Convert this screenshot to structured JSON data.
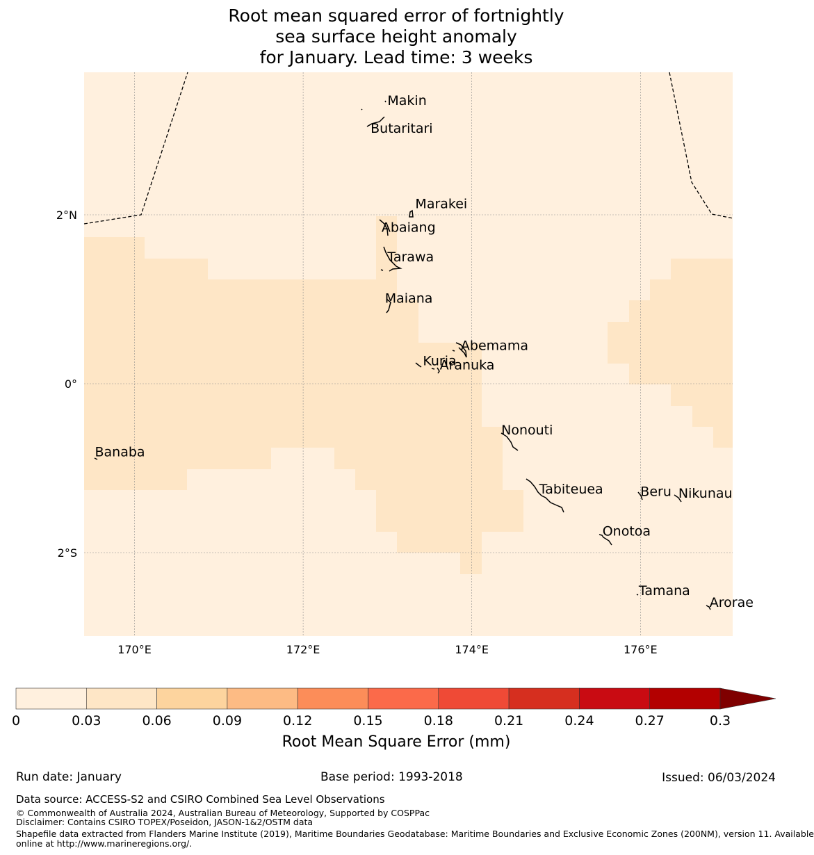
{
  "title": {
    "line1": "Root mean squared error of fortnightly",
    "line2": "sea surface height anomaly",
    "line3": "for January. Lead time: 3 weeks"
  },
  "map": {
    "lon_range": [
      169.4,
      177.1
    ],
    "lat_range": [
      -3.0,
      3.7
    ],
    "lon_ticks": [
      {
        "value": 170,
        "label": "170°E"
      },
      {
        "value": 172,
        "label": "172°E"
      },
      {
        "value": 174,
        "label": "174°E"
      },
      {
        "value": 176,
        "label": "176°E"
      }
    ],
    "lat_ticks": [
      {
        "value": 2,
        "label": "2°N"
      },
      {
        "value": 0,
        "label": "0°"
      },
      {
        "value": -2,
        "label": "2°S"
      }
    ],
    "places": [
      {
        "name": "Makin",
        "lon": 173.0,
        "lat": 3.3
      },
      {
        "name": "Butaritari",
        "lon": 172.8,
        "lat": 2.97
      },
      {
        "name": "Marakei",
        "lon": 173.33,
        "lat": 2.08
      },
      {
        "name": "Abaiang",
        "lon": 172.93,
        "lat": 1.8
      },
      {
        "name": "Tarawa",
        "lon": 173.0,
        "lat": 1.45
      },
      {
        "name": "Maiana",
        "lon": 172.97,
        "lat": 0.96
      },
      {
        "name": "Abemama",
        "lon": 173.87,
        "lat": 0.4
      },
      {
        "name": "Kuria",
        "lon": 173.42,
        "lat": 0.22
      },
      {
        "name": "Aranuka",
        "lon": 173.62,
        "lat": 0.17
      },
      {
        "name": "Nonouti",
        "lon": 174.35,
        "lat": -0.6
      },
      {
        "name": "Banaba",
        "lon": 169.53,
        "lat": -0.86
      },
      {
        "name": "Tabiteuea",
        "lon": 174.8,
        "lat": -1.3
      },
      {
        "name": "Beru",
        "lon": 176.0,
        "lat": -1.33
      },
      {
        "name": "Nikunau",
        "lon": 176.45,
        "lat": -1.35
      },
      {
        "name": "Onotoa",
        "lon": 175.55,
        "lat": -1.8
      },
      {
        "name": "Tamana",
        "lon": 175.98,
        "lat": -2.5
      },
      {
        "name": "Arorae",
        "lon": 176.82,
        "lat": -2.64
      }
    ]
  },
  "colorbar": {
    "ticks": [
      "0",
      "0.03",
      "0.06",
      "0.09",
      "0.12",
      "0.15",
      "0.18",
      "0.21",
      "0.24",
      "0.27",
      "0.3"
    ],
    "colors": [
      "#fff0de",
      "#fee6c6",
      "#fdd49e",
      "#fdbb84",
      "#fc8d59",
      "#fb6a4a",
      "#ef4a36",
      "#d62f1f",
      "#c90b12",
      "#b30000"
    ],
    "extend_color": "#7f0000",
    "label": "Root Mean Square Error (mm)"
  },
  "footer": {
    "run_date": "Run date: January",
    "base_period": "Base period: 1993-2018",
    "issued": "Issued: 06/03/2024",
    "data_source": "Data source: ACCESS-S2 and CSIRO Combined Sea Level Observations",
    "copyright": "© Commonwealth of Australia 2024, Australian Bureau of Meteorology, Supported by COSPPac",
    "disclaimer": "Disclaimer: Contains CSIRO TOPEX/Poseidon, JASON-1&2/OSTM data",
    "shapefile_line1": "Shapefile data extracted from Flanders Marine Institute (2019), Maritime Boundaries Geodatabase: Maritime Boundaries and Exclusive Economic Zones (200NM), version 11. Available",
    "shapefile_line2": "online at http://www.marineregions.org/."
  }
}
